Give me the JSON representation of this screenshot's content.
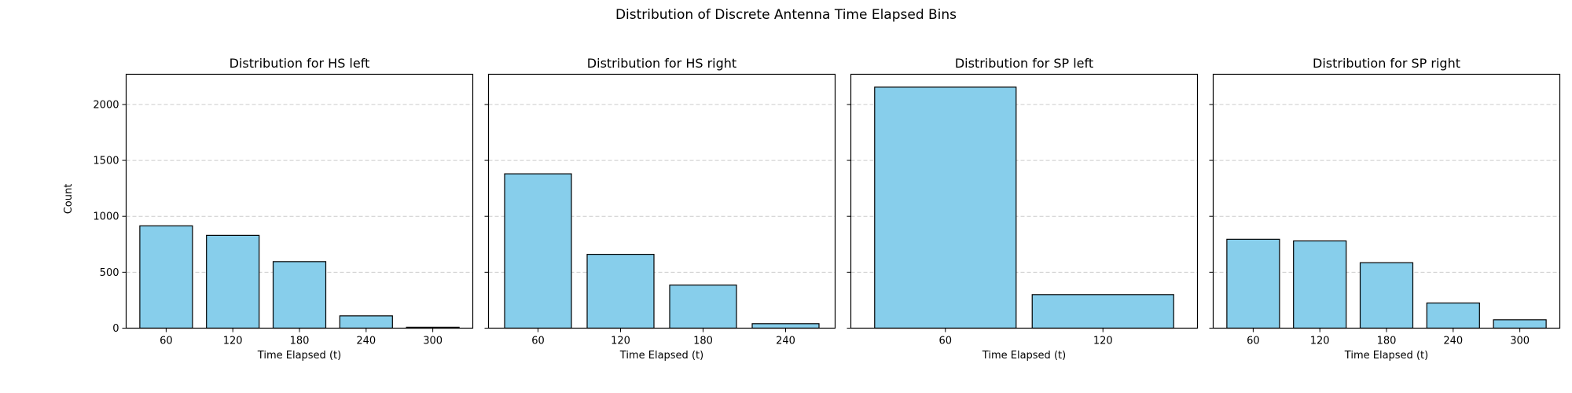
{
  "figure": {
    "suptitle": "Distribution of Discrete Antenna Time Elapsed Bins",
    "ylabel": "Count",
    "bar_color": "#87CEEB",
    "edge_color": "#000000",
    "grid_color": "#cccccc"
  },
  "chart_data": [
    {
      "type": "bar",
      "title": "Distribution for HS left",
      "xlabel": "Time Elapsed (t)",
      "ylabel": "Count",
      "categories": [
        "60",
        "120",
        "180",
        "240",
        "300"
      ],
      "values": [
        915,
        830,
        595,
        110,
        8
      ],
      "ylim": [
        0,
        2270
      ],
      "yticks": [
        0,
        500,
        1000,
        1500,
        2000
      ],
      "grid": "y dashed"
    },
    {
      "type": "bar",
      "title": "Distribution for HS right",
      "xlabel": "Time Elapsed (t)",
      "ylabel": "",
      "categories": [
        "60",
        "120",
        "180",
        "240"
      ],
      "values": [
        1380,
        660,
        385,
        40
      ],
      "ylim": [
        0,
        2270
      ],
      "yticks": [
        0,
        500,
        1000,
        1500,
        2000
      ],
      "grid": "y dashed"
    },
    {
      "type": "bar",
      "title": "Distribution for SP left",
      "xlabel": "Time Elapsed (t)",
      "ylabel": "",
      "categories": [
        "60",
        "120"
      ],
      "values": [
        2155,
        300
      ],
      "ylim": [
        0,
        2270
      ],
      "yticks": [
        0,
        500,
        1000,
        1500,
        2000
      ],
      "grid": "y dashed"
    },
    {
      "type": "bar",
      "title": "Distribution for SP right",
      "xlabel": "Time Elapsed (t)",
      "ylabel": "",
      "categories": [
        "60",
        "120",
        "180",
        "240",
        "300"
      ],
      "values": [
        795,
        780,
        585,
        225,
        75
      ],
      "ylim": [
        0,
        2270
      ],
      "yticks": [
        0,
        500,
        1000,
        1500,
        2000
      ],
      "grid": "y dashed"
    }
  ]
}
